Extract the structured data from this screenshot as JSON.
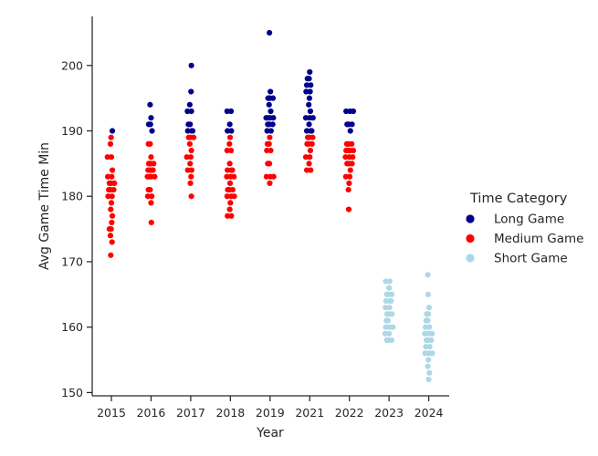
{
  "chart_data": {
    "type": "scatter",
    "style": "strip",
    "xlabel": "Year",
    "ylabel": "Avg Game Time Min",
    "ylim": [
      149.5,
      207.5
    ],
    "yticks": [
      150,
      160,
      170,
      180,
      190,
      200
    ],
    "categories": [
      "2015",
      "2016",
      "2017",
      "2018",
      "2019",
      "2021",
      "2022",
      "2023",
      "2024"
    ],
    "legend_title": "Time Category",
    "legend_position": "right",
    "series": [
      {
        "name": "Long Game",
        "color": "#00008b",
        "points": [
          [
            "2015",
            190
          ],
          [
            "2016",
            194
          ],
          [
            "2016",
            192
          ],
          [
            "2016",
            191
          ],
          [
            "2016",
            191
          ],
          [
            "2016",
            190
          ],
          [
            "2017",
            200
          ],
          [
            "2017",
            196
          ],
          [
            "2017",
            194
          ],
          [
            "2017",
            193
          ],
          [
            "2017",
            193
          ],
          [
            "2017",
            191
          ],
          [
            "2017",
            191
          ],
          [
            "2017",
            190
          ],
          [
            "2017",
            190
          ],
          [
            "2017",
            190
          ],
          [
            "2018",
            193
          ],
          [
            "2018",
            193
          ],
          [
            "2018",
            191
          ],
          [
            "2018",
            190
          ],
          [
            "2018",
            190
          ],
          [
            "2019",
            205
          ],
          [
            "2019",
            196
          ],
          [
            "2019",
            195
          ],
          [
            "2019",
            195
          ],
          [
            "2019",
            195
          ],
          [
            "2019",
            194
          ],
          [
            "2019",
            193
          ],
          [
            "2019",
            192
          ],
          [
            "2019",
            192
          ],
          [
            "2019",
            192
          ],
          [
            "2019",
            192
          ],
          [
            "2019",
            191
          ],
          [
            "2019",
            191
          ],
          [
            "2019",
            191
          ],
          [
            "2019",
            190
          ],
          [
            "2019",
            190
          ],
          [
            "2021",
            199
          ],
          [
            "2021",
            198
          ],
          [
            "2021",
            198
          ],
          [
            "2021",
            197
          ],
          [
            "2021",
            197
          ],
          [
            "2021",
            196
          ],
          [
            "2021",
            196
          ],
          [
            "2021",
            195
          ],
          [
            "2021",
            194
          ],
          [
            "2021",
            193
          ],
          [
            "2021",
            192
          ],
          [
            "2021",
            192
          ],
          [
            "2021",
            192
          ],
          [
            "2021",
            191
          ],
          [
            "2021",
            190
          ],
          [
            "2021",
            190
          ],
          [
            "2021",
            190
          ],
          [
            "2022",
            193
          ],
          [
            "2022",
            193
          ],
          [
            "2022",
            193
          ],
          [
            "2022",
            191
          ],
          [
            "2022",
            191
          ],
          [
            "2022",
            191
          ],
          [
            "2022",
            190
          ]
        ]
      },
      {
        "name": "Medium Game",
        "color": "#ff0000",
        "points": [
          [
            "2015",
            189
          ],
          [
            "2015",
            188
          ],
          [
            "2015",
            186
          ],
          [
            "2015",
            186
          ],
          [
            "2015",
            184
          ],
          [
            "2015",
            183
          ],
          [
            "2015",
            183
          ],
          [
            "2015",
            182
          ],
          [
            "2015",
            182
          ],
          [
            "2015",
            182
          ],
          [
            "2015",
            181
          ],
          [
            "2015",
            181
          ],
          [
            "2015",
            181
          ],
          [
            "2015",
            180
          ],
          [
            "2015",
            180
          ],
          [
            "2015",
            179
          ],
          [
            "2015",
            178
          ],
          [
            "2015",
            177
          ],
          [
            "2015",
            176
          ],
          [
            "2015",
            175
          ],
          [
            "2015",
            175
          ],
          [
            "2015",
            174
          ],
          [
            "2015",
            173
          ],
          [
            "2015",
            171
          ],
          [
            "2016",
            188
          ],
          [
            "2016",
            188
          ],
          [
            "2016",
            186
          ],
          [
            "2016",
            185
          ],
          [
            "2016",
            185
          ],
          [
            "2016",
            185
          ],
          [
            "2016",
            185
          ],
          [
            "2016",
            184
          ],
          [
            "2016",
            184
          ],
          [
            "2016",
            184
          ],
          [
            "2016",
            184
          ],
          [
            "2016",
            183
          ],
          [
            "2016",
            183
          ],
          [
            "2016",
            183
          ],
          [
            "2016",
            183
          ],
          [
            "2016",
            181
          ],
          [
            "2016",
            181
          ],
          [
            "2016",
            180
          ],
          [
            "2016",
            180
          ],
          [
            "2016",
            179
          ],
          [
            "2016",
            176
          ],
          [
            "2017",
            189
          ],
          [
            "2017",
            189
          ],
          [
            "2017",
            189
          ],
          [
            "2017",
            188
          ],
          [
            "2017",
            187
          ],
          [
            "2017",
            186
          ],
          [
            "2017",
            186
          ],
          [
            "2017",
            185
          ],
          [
            "2017",
            184
          ],
          [
            "2017",
            184
          ],
          [
            "2017",
            183
          ],
          [
            "2017",
            182
          ],
          [
            "2017",
            180
          ],
          [
            "2018",
            189
          ],
          [
            "2018",
            188
          ],
          [
            "2018",
            187
          ],
          [
            "2018",
            187
          ],
          [
            "2018",
            185
          ],
          [
            "2018",
            184
          ],
          [
            "2018",
            184
          ],
          [
            "2018",
            184
          ],
          [
            "2018",
            183
          ],
          [
            "2018",
            183
          ],
          [
            "2018",
            183
          ],
          [
            "2018",
            182
          ],
          [
            "2018",
            181
          ],
          [
            "2018",
            181
          ],
          [
            "2018",
            181
          ],
          [
            "2018",
            180
          ],
          [
            "2018",
            180
          ],
          [
            "2018",
            180
          ],
          [
            "2018",
            179
          ],
          [
            "2018",
            178
          ],
          [
            "2018",
            177
          ],
          [
            "2018",
            177
          ],
          [
            "2019",
            189
          ],
          [
            "2019",
            188
          ],
          [
            "2019",
            188
          ],
          [
            "2019",
            187
          ],
          [
            "2019",
            187
          ],
          [
            "2019",
            185
          ],
          [
            "2019",
            185
          ],
          [
            "2019",
            183
          ],
          [
            "2019",
            183
          ],
          [
            "2019",
            183
          ],
          [
            "2019",
            182
          ],
          [
            "2021",
            189
          ],
          [
            "2021",
            189
          ],
          [
            "2021",
            189
          ],
          [
            "2021",
            188
          ],
          [
            "2021",
            188
          ],
          [
            "2021",
            188
          ],
          [
            "2021",
            187
          ],
          [
            "2021",
            186
          ],
          [
            "2021",
            186
          ],
          [
            "2021",
            185
          ],
          [
            "2021",
            184
          ],
          [
            "2021",
            184
          ],
          [
            "2022",
            188
          ],
          [
            "2022",
            188
          ],
          [
            "2022",
            188
          ],
          [
            "2022",
            188
          ],
          [
            "2022",
            187
          ],
          [
            "2022",
            187
          ],
          [
            "2022",
            187
          ],
          [
            "2022",
            187
          ],
          [
            "2022",
            186
          ],
          [
            "2022",
            186
          ],
          [
            "2022",
            186
          ],
          [
            "2022",
            185
          ],
          [
            "2022",
            185
          ],
          [
            "2022",
            185
          ],
          [
            "2022",
            184
          ],
          [
            "2022",
            183
          ],
          [
            "2022",
            183
          ],
          [
            "2022",
            182
          ],
          [
            "2022",
            181
          ],
          [
            "2022",
            178
          ]
        ]
      },
      {
        "name": "Short Game",
        "color": "#add8e6",
        "points": [
          [
            "2023",
            167
          ],
          [
            "2023",
            167
          ],
          [
            "2023",
            166
          ],
          [
            "2023",
            165
          ],
          [
            "2023",
            165
          ],
          [
            "2023",
            165
          ],
          [
            "2023",
            164
          ],
          [
            "2023",
            164
          ],
          [
            "2023",
            164
          ],
          [
            "2023",
            163
          ],
          [
            "2023",
            163
          ],
          [
            "2023",
            162
          ],
          [
            "2023",
            162
          ],
          [
            "2023",
            162
          ],
          [
            "2023",
            161
          ],
          [
            "2023",
            161
          ],
          [
            "2023",
            160
          ],
          [
            "2023",
            160
          ],
          [
            "2023",
            160
          ],
          [
            "2023",
            159
          ],
          [
            "2023",
            159
          ],
          [
            "2023",
            158
          ],
          [
            "2023",
            158
          ],
          [
            "2023",
            158
          ],
          [
            "2024",
            168
          ],
          [
            "2024",
            165
          ],
          [
            "2024",
            163
          ],
          [
            "2024",
            162
          ],
          [
            "2024",
            162
          ],
          [
            "2024",
            161
          ],
          [
            "2024",
            161
          ],
          [
            "2024",
            160
          ],
          [
            "2024",
            160
          ],
          [
            "2024",
            159
          ],
          [
            "2024",
            159
          ],
          [
            "2024",
            159
          ],
          [
            "2024",
            158
          ],
          [
            "2024",
            158
          ],
          [
            "2024",
            158
          ],
          [
            "2024",
            157
          ],
          [
            "2024",
            157
          ],
          [
            "2024",
            156
          ],
          [
            "2024",
            156
          ],
          [
            "2024",
            156
          ],
          [
            "2024",
            155
          ],
          [
            "2024",
            154
          ],
          [
            "2024",
            153
          ],
          [
            "2024",
            152
          ]
        ]
      }
    ]
  }
}
